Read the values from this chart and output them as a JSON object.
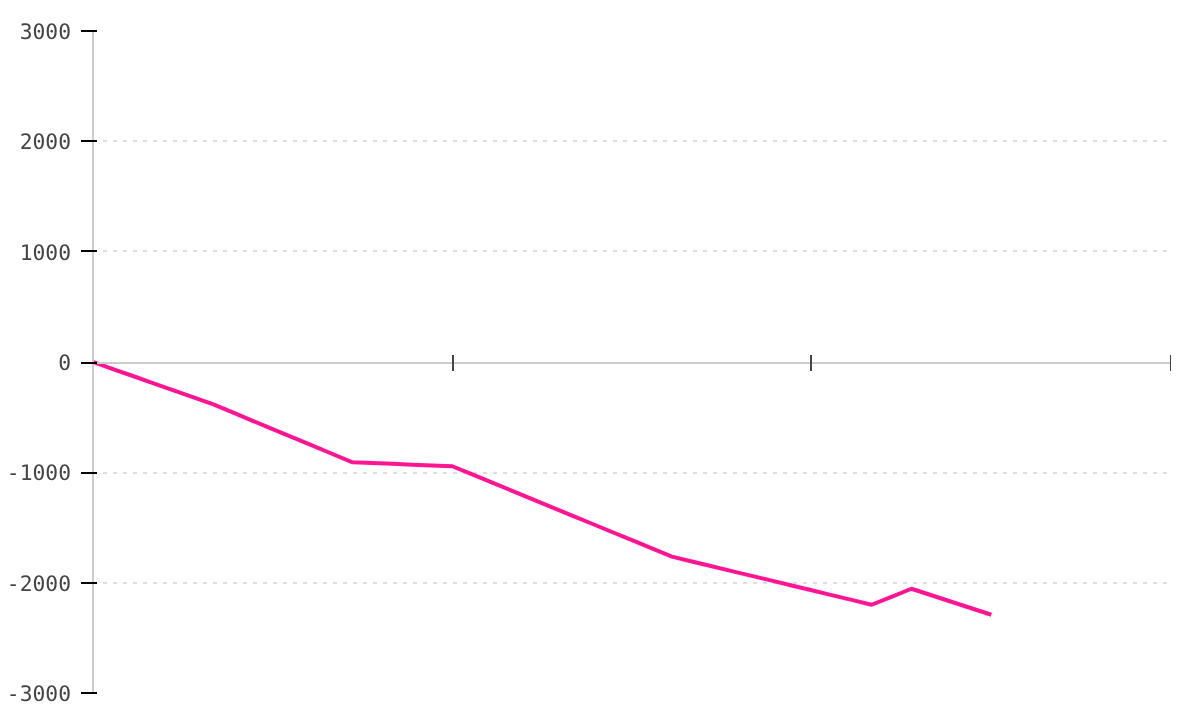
{
  "chart_data": {
    "type": "line",
    "categories": [
      null,
      null,
      null,
      null,
      null,
      null,
      null,
      null,
      null,
      null,
      null,
      null,
      null,
      null,
      null,
      null,
      null,
      null,
      null,
      null,
      null,
      null,
      null,
      null,
      null,
      null,
      null,
      null,
      null,
      null,
      null,
      null,
      null,
      null,
      null,
      null,
      null,
      null,
      null,
      null,
      null,
      null,
      null,
      null,
      null,
      null,
      null,
      null,
      null,
      null,
      null,
      null,
      null,
      null,
      null
    ],
    "series": [
      {
        "color": "#ff1493",
        "values": [
          0,
          -64,
          -127,
          -191,
          -255,
          -318,
          -382,
          -457,
          -533,
          -608,
          -683,
          -758,
          -834,
          -909,
          -916,
          -923,
          -931,
          -938,
          -945,
          -1019,
          -1094,
          -1168,
          -1243,
          -1317,
          -1392,
          -1466,
          -1541,
          -1615,
          -1690,
          -1764,
          -1808,
          -1851,
          -1895,
          -1938,
          -1982,
          -2026,
          -2069,
          -2113,
          -2156,
          -2200,
          -2128,
          -2055,
          -2114,
          -2173,
          -2232,
          -2291,
          null,
          null,
          null,
          null,
          null,
          null,
          null,
          null,
          null
        ]
      }
    ],
    "ylim": [
      -3000,
      3000
    ],
    "yticks": [
      -3000,
      -2000,
      -1000,
      0,
      1000,
      2000,
      3000
    ],
    "tick_labels": "y",
    "grid": "y",
    "line_style": "solid"
  }
}
